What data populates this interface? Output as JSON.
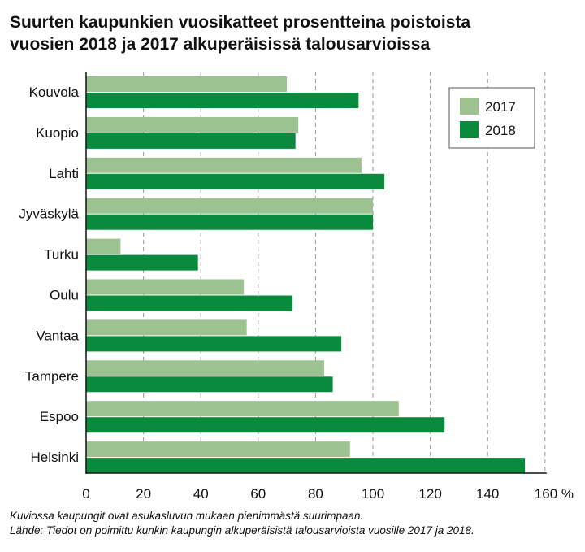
{
  "title_lines": [
    "Suurten kaupunkien vuosikatteet prosentteina poistoista",
    "vuosien 2018 ja 2017 alkuperäisissä talousarvioissa"
  ],
  "notes": [
    "Kuviossa kaupungit ovat asukasluvun mukaan pienimmästä suurimpaan.",
    "Lähde: Tiedot on poimittu kunkin kaupungin alkuperäisistä talousarvioista vuosille 2017 ja 2018."
  ],
  "colors": {
    "s2017": "#9dc291",
    "s2018": "#0a8a3c",
    "grid": "#9a9a9a",
    "axis": "#111111"
  },
  "chart_data": {
    "type": "bar",
    "orientation": "horizontal",
    "categories": [
      "Kouvola",
      "Kuopio",
      "Lahti",
      "Jyväskylä",
      "Turku",
      "Oulu",
      "Vantaa",
      "Tampere",
      "Espoo",
      "Helsinki"
    ],
    "series": [
      {
        "name": "2017",
        "values": [
          70,
          74,
          96,
          100,
          12,
          55,
          56,
          83,
          109,
          92
        ]
      },
      {
        "name": "2018",
        "values": [
          95,
          73,
          104,
          100,
          39,
          72,
          89,
          86,
          125,
          153
        ]
      }
    ],
    "xlim": [
      0,
      160
    ],
    "xticks": [
      "0",
      "20",
      "40",
      "60",
      "80",
      "100",
      "120",
      "140",
      "160 %"
    ],
    "grid": "vertical dashed",
    "legend_position": "top-right"
  }
}
